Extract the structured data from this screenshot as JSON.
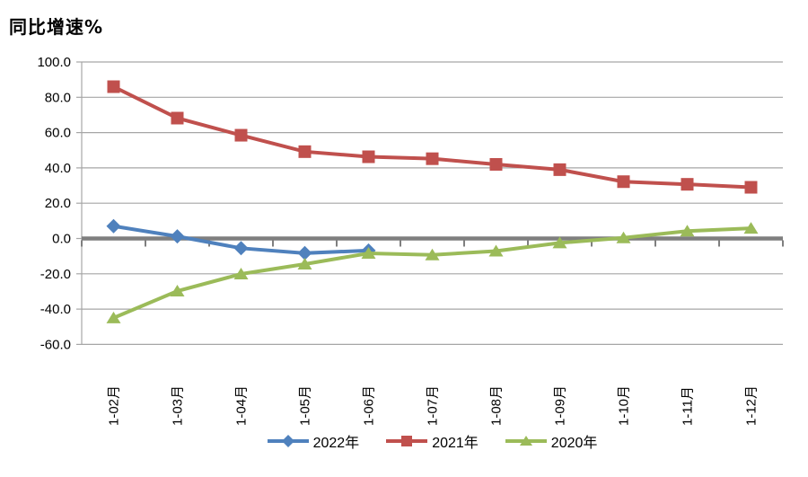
{
  "title": "同比增速%",
  "chart_data": {
    "type": "line",
    "title": "同比增速%",
    "categories": [
      "1-02月",
      "1-03月",
      "1-04月",
      "1-05月",
      "1-06月",
      "1-07月",
      "1-08月",
      "1-09月",
      "1-10月",
      "1-11月",
      "1-12月"
    ],
    "series": [
      {
        "name": "2022年",
        "color": "#4F81BD",
        "marker": "diamond",
        "values": [
          7.0,
          1.2,
          -5.5,
          -8.3,
          -6.8,
          null,
          null,
          null,
          null,
          null,
          null
        ]
      },
      {
        "name": "2021年",
        "color": "#C0504D",
        "marker": "square",
        "values": [
          86.0,
          68.2,
          58.5,
          49.2,
          46.3,
          45.2,
          42.0,
          39.0,
          32.2,
          30.7,
          29.0
        ]
      },
      {
        "name": "2020年",
        "color": "#9BBB59",
        "marker": "triangle",
        "values": [
          -45.0,
          -29.8,
          -20.1,
          -14.5,
          -8.4,
          -9.3,
          -7.1,
          -2.5,
          0.4,
          4.2,
          5.8
        ]
      }
    ],
    "xlabel": "",
    "ylabel": "同比增速%",
    "ylim": [
      -60,
      100
    ],
    "ytick_step": 20,
    "ytick_labels": [
      "100.0",
      "80.0",
      "60.0",
      "40.0",
      "20.0",
      "0.0",
      "-20.0",
      "-40.0",
      "-60.0"
    ],
    "grid": true,
    "legend_position": "bottom",
    "colors": {
      "background": "#FFFFFF",
      "gridline": "#A6A6A6",
      "zero_axis": "#7F7F7F",
      "text": "#000000"
    }
  }
}
